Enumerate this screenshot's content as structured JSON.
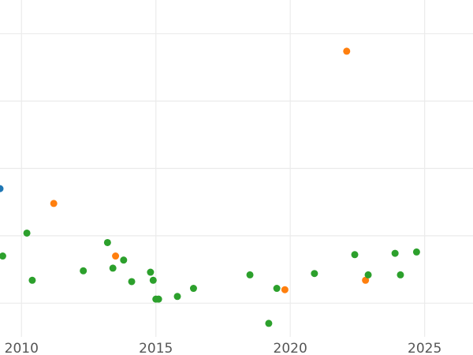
{
  "chart_data": {
    "type": "scatter",
    "title": "",
    "xlabel": "",
    "ylabel": "",
    "xlim": [
      2009.2,
      2026.8
    ],
    "ylim": [
      2.5,
      27.5
    ],
    "grid": true,
    "legend": "none",
    "x_ticks": [
      2010,
      2015,
      2020,
      2025
    ],
    "x_tick_labels": [
      "2010",
      "2015",
      "2020",
      "2025"
    ],
    "y_gridlines": [
      5,
      10,
      15,
      20,
      25
    ],
    "series": [
      {
        "color": "#1f77b4",
        "points": [
          [
            2009.2,
            13.5
          ]
        ]
      },
      {
        "color": "#ff7f0e",
        "points": [
          [
            2011.2,
            12.4
          ],
          [
            2013.5,
            8.5
          ],
          [
            2019.8,
            6.0
          ],
          [
            2022.1,
            23.7
          ],
          [
            2022.8,
            6.7
          ]
        ]
      },
      {
        "color": "#2ca02c",
        "points": [
          [
            2009.3,
            8.5
          ],
          [
            2010.2,
            10.2
          ],
          [
            2010.4,
            6.7
          ],
          [
            2012.3,
            7.4
          ],
          [
            2013.2,
            9.5
          ],
          [
            2013.4,
            7.6
          ],
          [
            2013.8,
            8.2
          ],
          [
            2014.1,
            6.6
          ],
          [
            2014.8,
            7.3
          ],
          [
            2014.9,
            6.7
          ],
          [
            2015.0,
            5.3
          ],
          [
            2015.1,
            5.3
          ],
          [
            2015.8,
            5.5
          ],
          [
            2016.4,
            6.1
          ],
          [
            2018.5,
            7.1
          ],
          [
            2019.2,
            3.5
          ],
          [
            2019.5,
            6.1
          ],
          [
            2020.9,
            7.2
          ],
          [
            2022.4,
            8.6
          ],
          [
            2022.9,
            7.1
          ],
          [
            2023.9,
            8.7
          ],
          [
            2024.1,
            7.1
          ],
          [
            2024.7,
            8.8
          ]
        ]
      }
    ]
  }
}
